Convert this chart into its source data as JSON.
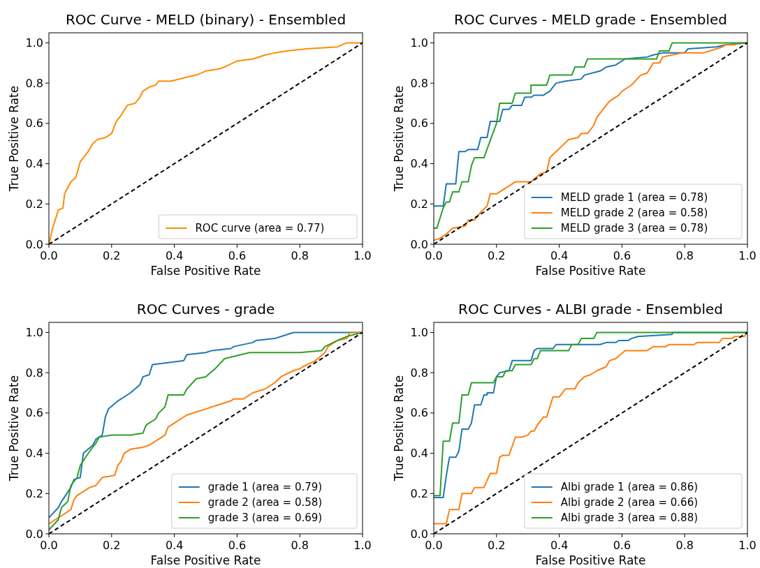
{
  "chart_data": [
    {
      "type": "line",
      "title": "ROC Curve - MELD (binary) - Ensembled",
      "xlabel": "False Positive Rate",
      "ylabel": "True Positive Rate",
      "xlim": [
        0,
        1
      ],
      "ylim": [
        0,
        1.05
      ],
      "xticks": [
        {
          "value": 0,
          "label": "0.0"
        },
        {
          "value": 0.2,
          "label": "0.2"
        },
        {
          "value": 0.4,
          "label": "0.4"
        },
        {
          "value": 0.6,
          "label": "0.6"
        },
        {
          "value": 0.8,
          "label": "0.8"
        },
        {
          "value": 1,
          "label": "1.0"
        }
      ],
      "yticks": [
        {
          "value": 0,
          "label": "0.0"
        },
        {
          "value": 0.2,
          "label": "0.2"
        },
        {
          "value": 0.4,
          "label": "0.4"
        },
        {
          "value": 0.6,
          "label": "0.6"
        },
        {
          "value": 0.8,
          "label": "0.8"
        },
        {
          "value": 1,
          "label": "1.0"
        }
      ],
      "legend": "bottom right",
      "series": [
        {
          "name": "ROC curve (area = 0.77)",
          "color": "#ff8c00",
          "x": [
            0,
            0.005,
            0.01,
            0.02,
            0.03,
            0.045,
            0.05,
            0.06,
            0.07,
            0.085,
            0.095,
            0.1,
            0.11,
            0.125,
            0.14,
            0.155,
            0.18,
            0.2,
            0.215,
            0.23,
            0.25,
            0.275,
            0.29,
            0.3,
            0.32,
            0.34,
            0.35,
            0.39,
            0.44,
            0.47,
            0.5,
            0.54,
            0.56,
            0.6,
            0.65,
            0.69,
            0.72,
            0.76,
            0.82,
            0.92,
            0.95,
            1
          ],
          "values": [
            0,
            0.03,
            0.07,
            0.12,
            0.17,
            0.18,
            0.25,
            0.28,
            0.31,
            0.33,
            0.38,
            0.41,
            0.43,
            0.46,
            0.5,
            0.52,
            0.53,
            0.55,
            0.61,
            0.64,
            0.69,
            0.7,
            0.73,
            0.76,
            0.78,
            0.79,
            0.81,
            0.81,
            0.83,
            0.84,
            0.86,
            0.87,
            0.88,
            0.91,
            0.92,
            0.94,
            0.95,
            0.96,
            0.97,
            0.98,
            1,
            1
          ]
        },
        {
          "color": "#000000",
          "line_style": "dashed",
          "x": [
            0,
            1
          ],
          "values": [
            0,
            1
          ]
        }
      ]
    },
    {
      "type": "line",
      "title": "ROC Curves - MELD grade - Ensembled",
      "xlabel": "False Positive Rate",
      "ylabel": "True Positive Rate",
      "xlim": [
        0,
        1
      ],
      "ylim": [
        0,
        1.05
      ],
      "xticks": [
        {
          "value": 0,
          "label": "0.0"
        },
        {
          "value": 0.2,
          "label": "0.2"
        },
        {
          "value": 0.4,
          "label": "0.4"
        },
        {
          "value": 0.6,
          "label": "0.6"
        },
        {
          "value": 0.8,
          "label": "0.8"
        },
        {
          "value": 1,
          "label": "1.0"
        }
      ],
      "yticks": [
        {
          "value": 0,
          "label": "0.0"
        },
        {
          "value": 0.2,
          "label": "0.2"
        },
        {
          "value": 0.4,
          "label": "0.4"
        },
        {
          "value": 0.6,
          "label": "0.6"
        },
        {
          "value": 0.8,
          "label": "0.8"
        },
        {
          "value": 1,
          "label": "1.0"
        }
      ],
      "legend": "bottom right",
      "series": [
        {
          "name": "MELD grade 1 (area = 0.78)",
          "color": "#1f77b4",
          "x": [
            0,
            0.03,
            0.04,
            0.07,
            0.08,
            0.1,
            0.11,
            0.14,
            0.15,
            0.17,
            0.18,
            0.21,
            0.22,
            0.24,
            0.25,
            0.28,
            0.29,
            0.31,
            0.32,
            0.35,
            0.37,
            0.39,
            0.42,
            0.47,
            0.48,
            0.53,
            0.55,
            0.58,
            0.61,
            0.68,
            0.7,
            0.73,
            0.8,
            0.81,
            0.9,
            0.93,
            1
          ],
          "values": [
            0.19,
            0.19,
            0.3,
            0.3,
            0.46,
            0.46,
            0.47,
            0.47,
            0.53,
            0.53,
            0.61,
            0.61,
            0.67,
            0.67,
            0.69,
            0.69,
            0.73,
            0.73,
            0.74,
            0.74,
            0.76,
            0.8,
            0.81,
            0.82,
            0.84,
            0.86,
            0.88,
            0.89,
            0.92,
            0.93,
            0.94,
            0.95,
            0.95,
            0.97,
            0.98,
            0.99,
            1
          ]
        },
        {
          "name": "MELD grade 2 (area = 0.58)",
          "color": "#ff7f0e",
          "x": [
            0,
            0.02,
            0.04,
            0.06,
            0.1,
            0.11,
            0.13,
            0.15,
            0.17,
            0.18,
            0.2,
            0.22,
            0.24,
            0.26,
            0.31,
            0.34,
            0.36,
            0.37,
            0.39,
            0.41,
            0.43,
            0.46,
            0.47,
            0.49,
            0.51,
            0.52,
            0.54,
            0.56,
            0.59,
            0.6,
            0.63,
            0.66,
            0.68,
            0.7,
            0.72,
            0.73,
            0.76,
            0.79,
            0.86,
            0.88,
            0.92,
            0.93,
            0.96,
            0.97,
            1
          ],
          "values": [
            0.02,
            0.03,
            0.05,
            0.08,
            0.09,
            0.12,
            0.12,
            0.16,
            0.19,
            0.25,
            0.25,
            0.27,
            0.29,
            0.31,
            0.31,
            0.35,
            0.36,
            0.43,
            0.46,
            0.49,
            0.52,
            0.53,
            0.55,
            0.55,
            0.59,
            0.63,
            0.67,
            0.71,
            0.74,
            0.76,
            0.79,
            0.84,
            0.85,
            0.9,
            0.9,
            0.93,
            0.94,
            0.95,
            0.95,
            0.96,
            0.98,
            0.99,
            0.99,
            1,
            1
          ]
        },
        {
          "name": "MELD grade 3 (area = 0.78)",
          "color": "#2ca02c",
          "x": [
            0,
            0.01,
            0.03,
            0.04,
            0.05,
            0.06,
            0.08,
            0.09,
            0.11,
            0.12,
            0.13,
            0.16,
            0.2,
            0.21,
            0.25,
            0.26,
            0.31,
            0.31,
            0.36,
            0.37,
            0.44,
            0.45,
            0.48,
            0.49,
            0.71,
            0.72,
            0.75,
            0.76,
            1
          ],
          "values": [
            0.08,
            0.08,
            0.18,
            0.21,
            0.21,
            0.26,
            0.26,
            0.31,
            0.31,
            0.39,
            0.43,
            0.43,
            0.6,
            0.7,
            0.7,
            0.75,
            0.75,
            0.79,
            0.79,
            0.84,
            0.84,
            0.88,
            0.88,
            0.92,
            0.92,
            0.96,
            0.96,
            1,
            1
          ]
        },
        {
          "color": "#000000",
          "line_style": "dashed",
          "x": [
            0,
            1
          ],
          "values": [
            0,
            1
          ]
        }
      ]
    },
    {
      "type": "line",
      "title": "ROC Curves - grade",
      "xlabel": "False Positive Rate",
      "ylabel": "True Positive Rate",
      "xlim": [
        0,
        1
      ],
      "ylim": [
        0,
        1.05
      ],
      "xticks": [
        {
          "value": 0,
          "label": "0.0"
        },
        {
          "value": 0.2,
          "label": "0.2"
        },
        {
          "value": 0.4,
          "label": "0.4"
        },
        {
          "value": 0.6,
          "label": "0.6"
        },
        {
          "value": 0.8,
          "label": "0.8"
        },
        {
          "value": 1,
          "label": "1.0"
        }
      ],
      "yticks": [
        {
          "value": 0,
          "label": "0.0"
        },
        {
          "value": 0.2,
          "label": "0.2"
        },
        {
          "value": 0.4,
          "label": "0.4"
        },
        {
          "value": 0.6,
          "label": "0.6"
        },
        {
          "value": 0.8,
          "label": "0.8"
        },
        {
          "value": 1,
          "label": "1.0"
        }
      ],
      "legend": "bottom right",
      "series": [
        {
          "name": "grade 1 (area = 0.79)",
          "color": "#1f77b4",
          "x": [
            0,
            0.03,
            0.04,
            0.07,
            0.08,
            0.1,
            0.11,
            0.14,
            0.15,
            0.17,
            0.18,
            0.19,
            0.22,
            0.26,
            0.29,
            0.3,
            0.32,
            0.33,
            0.43,
            0.44,
            0.5,
            0.52,
            0.58,
            0.59,
            0.65,
            0.66,
            0.72,
            0.74,
            0.78,
            1
          ],
          "values": [
            0.08,
            0.13,
            0.16,
            0.23,
            0.27,
            0.28,
            0.4,
            0.44,
            0.47,
            0.49,
            0.58,
            0.62,
            0.66,
            0.7,
            0.74,
            0.78,
            0.79,
            0.84,
            0.86,
            0.89,
            0.9,
            0.91,
            0.92,
            0.93,
            0.95,
            0.96,
            0.97,
            0.98,
            1,
            1
          ]
        },
        {
          "name": "grade 2 (area = 0.58)",
          "color": "#ff7f0e",
          "x": [
            0,
            0.04,
            0.07,
            0.08,
            0.09,
            0.13,
            0.15,
            0.17,
            0.21,
            0.22,
            0.23,
            0.24,
            0.26,
            0.3,
            0.32,
            0.35,
            0.37,
            0.38,
            0.41,
            0.44,
            0.48,
            0.5,
            0.54,
            0.58,
            0.59,
            0.62,
            0.65,
            0.69,
            0.72,
            0.74,
            0.78,
            0.8,
            0.81,
            0.85,
            0.88,
            0.89,
            0.92,
            0.95,
            0.96,
            1
          ],
          "values": [
            0.05,
            0.09,
            0.12,
            0.17,
            0.19,
            0.23,
            0.24,
            0.28,
            0.29,
            0.34,
            0.36,
            0.4,
            0.42,
            0.43,
            0.44,
            0.47,
            0.49,
            0.53,
            0.56,
            0.59,
            0.61,
            0.62,
            0.64,
            0.66,
            0.67,
            0.67,
            0.7,
            0.72,
            0.75,
            0.78,
            0.81,
            0.82,
            0.83,
            0.86,
            0.9,
            0.93,
            0.96,
            0.97,
            1,
            1
          ]
        },
        {
          "name": "grade 3 (area = 0.69)",
          "color": "#2ca02c",
          "x": [
            0,
            0.03,
            0.04,
            0.06,
            0.07,
            0.09,
            0.1,
            0.13,
            0.15,
            0.16,
            0.2,
            0.26,
            0.3,
            0.31,
            0.34,
            0.35,
            0.37,
            0.38,
            0.43,
            0.44,
            0.47,
            0.5,
            0.53,
            0.56,
            0.64,
            0.8,
            0.87,
            0.88,
            0.92,
            0.95,
            1
          ],
          "values": [
            0.02,
            0.07,
            0.13,
            0.16,
            0.24,
            0.28,
            0.34,
            0.41,
            0.45,
            0.48,
            0.49,
            0.49,
            0.5,
            0.54,
            0.57,
            0.6,
            0.63,
            0.69,
            0.69,
            0.72,
            0.77,
            0.78,
            0.82,
            0.87,
            0.9,
            0.9,
            0.91,
            0.93,
            0.96,
            0.98,
            1
          ]
        },
        {
          "color": "#000000",
          "line_style": "dashed",
          "x": [
            0,
            1
          ],
          "values": [
            0,
            1
          ]
        }
      ]
    },
    {
      "type": "line",
      "title": "ROC Curves - ALBI grade - Ensembled",
      "xlabel": "False Positive Rate",
      "ylabel": "True Positive Rate",
      "xlim": [
        0,
        1
      ],
      "ylim": [
        0,
        1.05
      ],
      "xticks": [
        {
          "value": 0,
          "label": "0.0"
        },
        {
          "value": 0.2,
          "label": "0.2"
        },
        {
          "value": 0.4,
          "label": "0.4"
        },
        {
          "value": 0.6,
          "label": "0.6"
        },
        {
          "value": 0.8,
          "label": "0.8"
        },
        {
          "value": 1,
          "label": "1.0"
        }
      ],
      "yticks": [
        {
          "value": 0,
          "label": "0.0"
        },
        {
          "value": 0.2,
          "label": "0.2"
        },
        {
          "value": 0.4,
          "label": "0.4"
        },
        {
          "value": 0.6,
          "label": "0.6"
        },
        {
          "value": 0.8,
          "label": "0.8"
        },
        {
          "value": 1,
          "label": "1.0"
        }
      ],
      "legend": "bottom right",
      "series": [
        {
          "name": "Albi grade 1 (area = 0.86)",
          "color": "#1f77b4",
          "x": [
            0,
            0.03,
            0.04,
            0.05,
            0.07,
            0.08,
            0.09,
            0.11,
            0.12,
            0.13,
            0.15,
            0.16,
            0.17,
            0.17,
            0.19,
            0.2,
            0.21,
            0.24,
            0.25,
            0.31,
            0.32,
            0.33,
            0.38,
            0.39,
            0.53,
            0.55,
            0.58,
            0.59,
            0.62,
            0.63,
            0.65,
            0.76,
            0.76,
            1
          ],
          "values": [
            0.18,
            0.18,
            0.29,
            0.38,
            0.38,
            0.41,
            0.52,
            0.52,
            0.55,
            0.64,
            0.64,
            0.69,
            0.69,
            0.7,
            0.7,
            0.78,
            0.8,
            0.81,
            0.86,
            0.86,
            0.91,
            0.92,
            0.92,
            0.94,
            0.94,
            0.95,
            0.95,
            0.96,
            0.96,
            0.97,
            0.98,
            0.99,
            1,
            1
          ]
        },
        {
          "name": "Albi grade 2 (area = 0.66)",
          "color": "#ff7f0e",
          "x": [
            0,
            0.04,
            0.05,
            0.08,
            0.09,
            0.12,
            0.13,
            0.16,
            0.18,
            0.2,
            0.21,
            0.22,
            0.24,
            0.26,
            0.28,
            0.3,
            0.31,
            0.32,
            0.33,
            0.35,
            0.36,
            0.38,
            0.4,
            0.42,
            0.45,
            0.46,
            0.48,
            0.5,
            0.52,
            0.55,
            0.56,
            0.58,
            0.61,
            0.68,
            0.7,
            0.74,
            0.75,
            0.83,
            0.84,
            0.91,
            0.92,
            0.95,
            0.96,
            0.99,
            1
          ],
          "values": [
            0.05,
            0.05,
            0.12,
            0.12,
            0.2,
            0.2,
            0.23,
            0.23,
            0.3,
            0.3,
            0.38,
            0.39,
            0.39,
            0.48,
            0.48,
            0.49,
            0.51,
            0.51,
            0.54,
            0.58,
            0.58,
            0.68,
            0.68,
            0.72,
            0.72,
            0.75,
            0.78,
            0.79,
            0.81,
            0.83,
            0.86,
            0.87,
            0.91,
            0.91,
            0.93,
            0.93,
            0.94,
            0.94,
            0.95,
            0.95,
            0.97,
            0.97,
            0.98,
            0.98,
            1
          ]
        },
        {
          "name": "Albi grade 3 (area = 0.88)",
          "color": "#2ca02c",
          "x": [
            0,
            0.02,
            0.03,
            0.05,
            0.06,
            0.08,
            0.09,
            0.11,
            0.12,
            0.19,
            0.2,
            0.22,
            0.23,
            0.25,
            0.26,
            0.31,
            0.32,
            0.33,
            0.34,
            0.43,
            0.44,
            0.46,
            0.47,
            0.51,
            0.52,
            1
          ],
          "values": [
            0.19,
            0.19,
            0.46,
            0.46,
            0.55,
            0.55,
            0.69,
            0.69,
            0.75,
            0.75,
            0.78,
            0.78,
            0.81,
            0.81,
            0.84,
            0.84,
            0.87,
            0.87,
            0.91,
            0.91,
            0.94,
            0.94,
            0.97,
            0.97,
            1,
            1
          ]
        },
        {
          "color": "#000000",
          "line_style": "dashed",
          "x": [
            0,
            1
          ],
          "values": [
            0,
            1
          ]
        }
      ]
    }
  ]
}
